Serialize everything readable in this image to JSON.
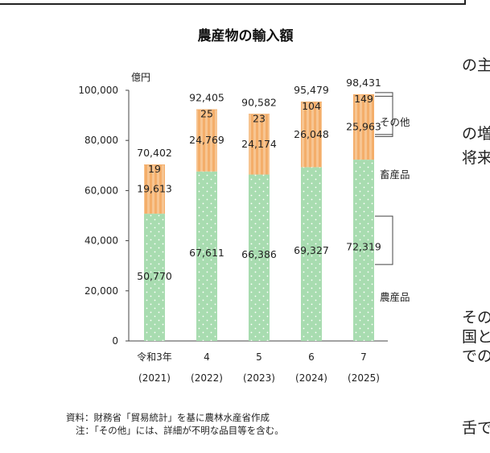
{
  "margin_text": [
    "の主",
    "の増",
    "将来",
    "その",
    "国と",
    "での",
    "舌で"
  ],
  "chart_data": {
    "type": "bar",
    "stacked": true,
    "title": "農産物の輸入額",
    "unit_label": "億円",
    "categories": [
      "令和3年",
      "4",
      "5",
      "6",
      "7"
    ],
    "years": [
      "(2021)",
      "(2022)",
      "(2023)",
      "(2024)",
      "(2025)"
    ],
    "series": [
      {
        "name": "農産品",
        "values": [
          50770,
          67611,
          66386,
          69327,
          72319
        ],
        "color": "#a8dcb0"
      },
      {
        "name": "畜産品",
        "values": [
          19613,
          24769,
          24174,
          26048,
          25963
        ],
        "color": "#f7be82"
      },
      {
        "name": "その他",
        "values": [
          19,
          25,
          23,
          104,
          149
        ],
        "color": "#f7be82"
      }
    ],
    "totals": [
      70402,
      92405,
      90582,
      95479,
      98431
    ],
    "value_labels": {
      "totals": [
        "70,402",
        "92,405",
        "90,582",
        "95,479",
        "98,431"
      ],
      "農産品": [
        "50,770",
        "67,611",
        "66,386",
        "69,327",
        "72,319"
      ],
      "畜産品": [
        "19,613",
        "24,769",
        "24,174",
        "26,048",
        "25,963"
      ],
      "その他": [
        "19",
        "25",
        "23",
        "104",
        "149"
      ]
    },
    "yticks": [
      0,
      20000,
      40000,
      60000,
      80000,
      100000
    ],
    "ytick_labels": [
      "0",
      "20,000",
      "40,000",
      "60,000",
      "80,000",
      "100,000"
    ],
    "ylim": [
      0,
      100000
    ],
    "legend": "right, labels with leader lines"
  },
  "source_note": "資料：財務省「貿易統計」を基に農林水産省作成",
  "footnote": "注：「その他」には、詳細が不明な品目等を含む。",
  "colors": {
    "agri": "#a8dcb0",
    "livestock": "#f7be82",
    "other": "#f7be82"
  }
}
